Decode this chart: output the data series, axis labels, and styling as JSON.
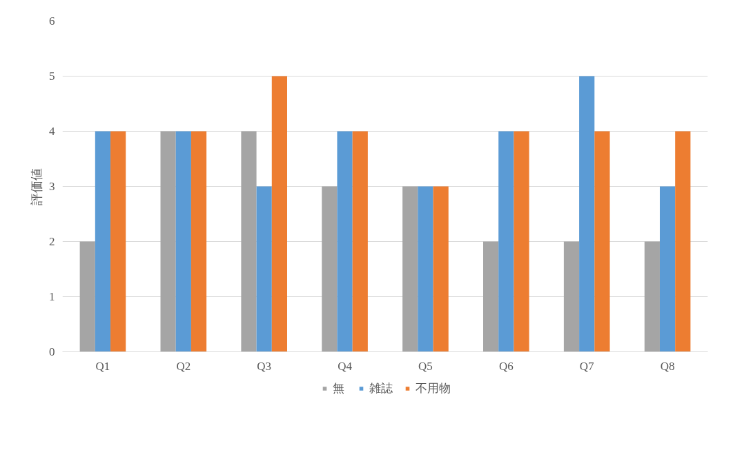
{
  "chart_data": {
    "type": "bar",
    "ylabel": "評価値",
    "categories": [
      "Q1",
      "Q2",
      "Q3",
      "Q4",
      "Q5",
      "Q6",
      "Q7",
      "Q8"
    ],
    "series": [
      {
        "name": "無",
        "color": "#a5a5a5",
        "values": [
          2,
          4,
          4,
          3,
          3,
          2,
          2,
          2
        ]
      },
      {
        "name": "雑誌",
        "color": "#5b9bd5",
        "values": [
          4,
          4,
          3,
          4,
          3,
          4,
          5,
          3
        ]
      },
      {
        "name": "不用物",
        "color": "#ed7d31",
        "values": [
          4,
          4,
          5,
          4,
          3,
          4,
          4,
          4
        ]
      }
    ],
    "ylim": [
      0,
      6
    ],
    "yticks": [
      0,
      1,
      2,
      3,
      4,
      5,
      6
    ],
    "grid": "y",
    "legend": "bottom"
  }
}
